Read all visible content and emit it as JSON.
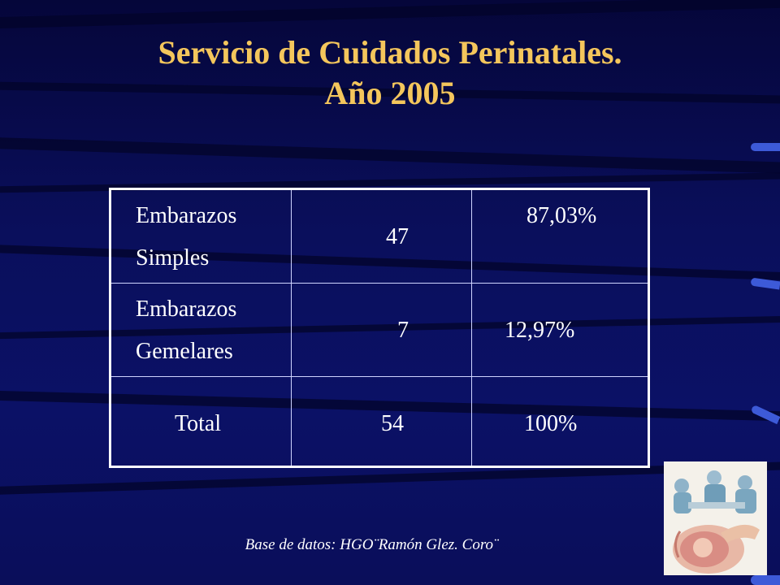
{
  "title_line1": "Servicio de Cuidados Perinatales.",
  "title_line2": "Año 2005",
  "table": {
    "rows": [
      {
        "label_line1": "Embarazos",
        "label_line2": "Simples",
        "count": "47",
        "percent": "87,03%"
      },
      {
        "label_line1": "Embarazos",
        "label_line2": "Gemelares",
        "count": "7",
        "percent": "12,97%"
      },
      {
        "label": "Total",
        "count": "54",
        "percent": "100%"
      }
    ]
  },
  "footer": "Base de datos: HGO¨Ramón Glez. Coro¨",
  "colors": {
    "title": "#f4c65c",
    "background": "#0a0f5c",
    "accent": "#3d5ad8"
  }
}
